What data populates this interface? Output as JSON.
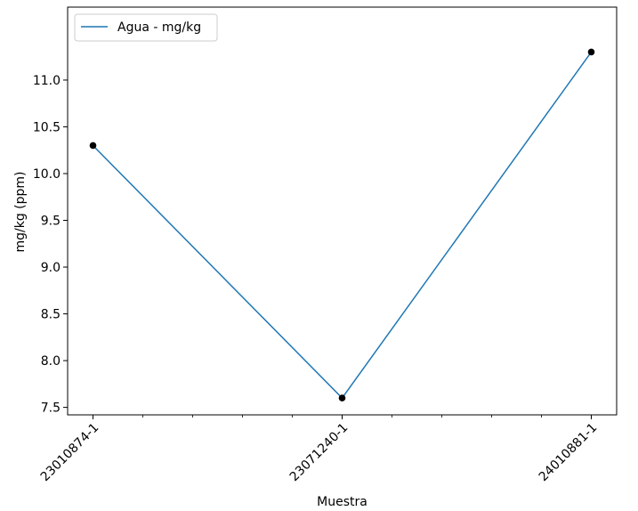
{
  "chart_data": {
    "type": "line",
    "categories": [
      "23010874-1",
      "23071240-1",
      "24010881-1"
    ],
    "series": [
      {
        "name": "Agua - mg/kg",
        "values": [
          10.3,
          7.6,
          11.3
        ]
      }
    ],
    "xlabel": "Muestra",
    "ylabel": "mg/kg (ppm)",
    "ylim": [
      7.42,
      11.78
    ],
    "yticks": [
      "7.5",
      "8.0",
      "8.5",
      "9.0",
      "9.5",
      "10.0",
      "10.5",
      "11.0"
    ],
    "grid": false,
    "legend_position": "upper-left",
    "colors": {
      "line": "#1f77b4",
      "marker": "#000000"
    }
  }
}
